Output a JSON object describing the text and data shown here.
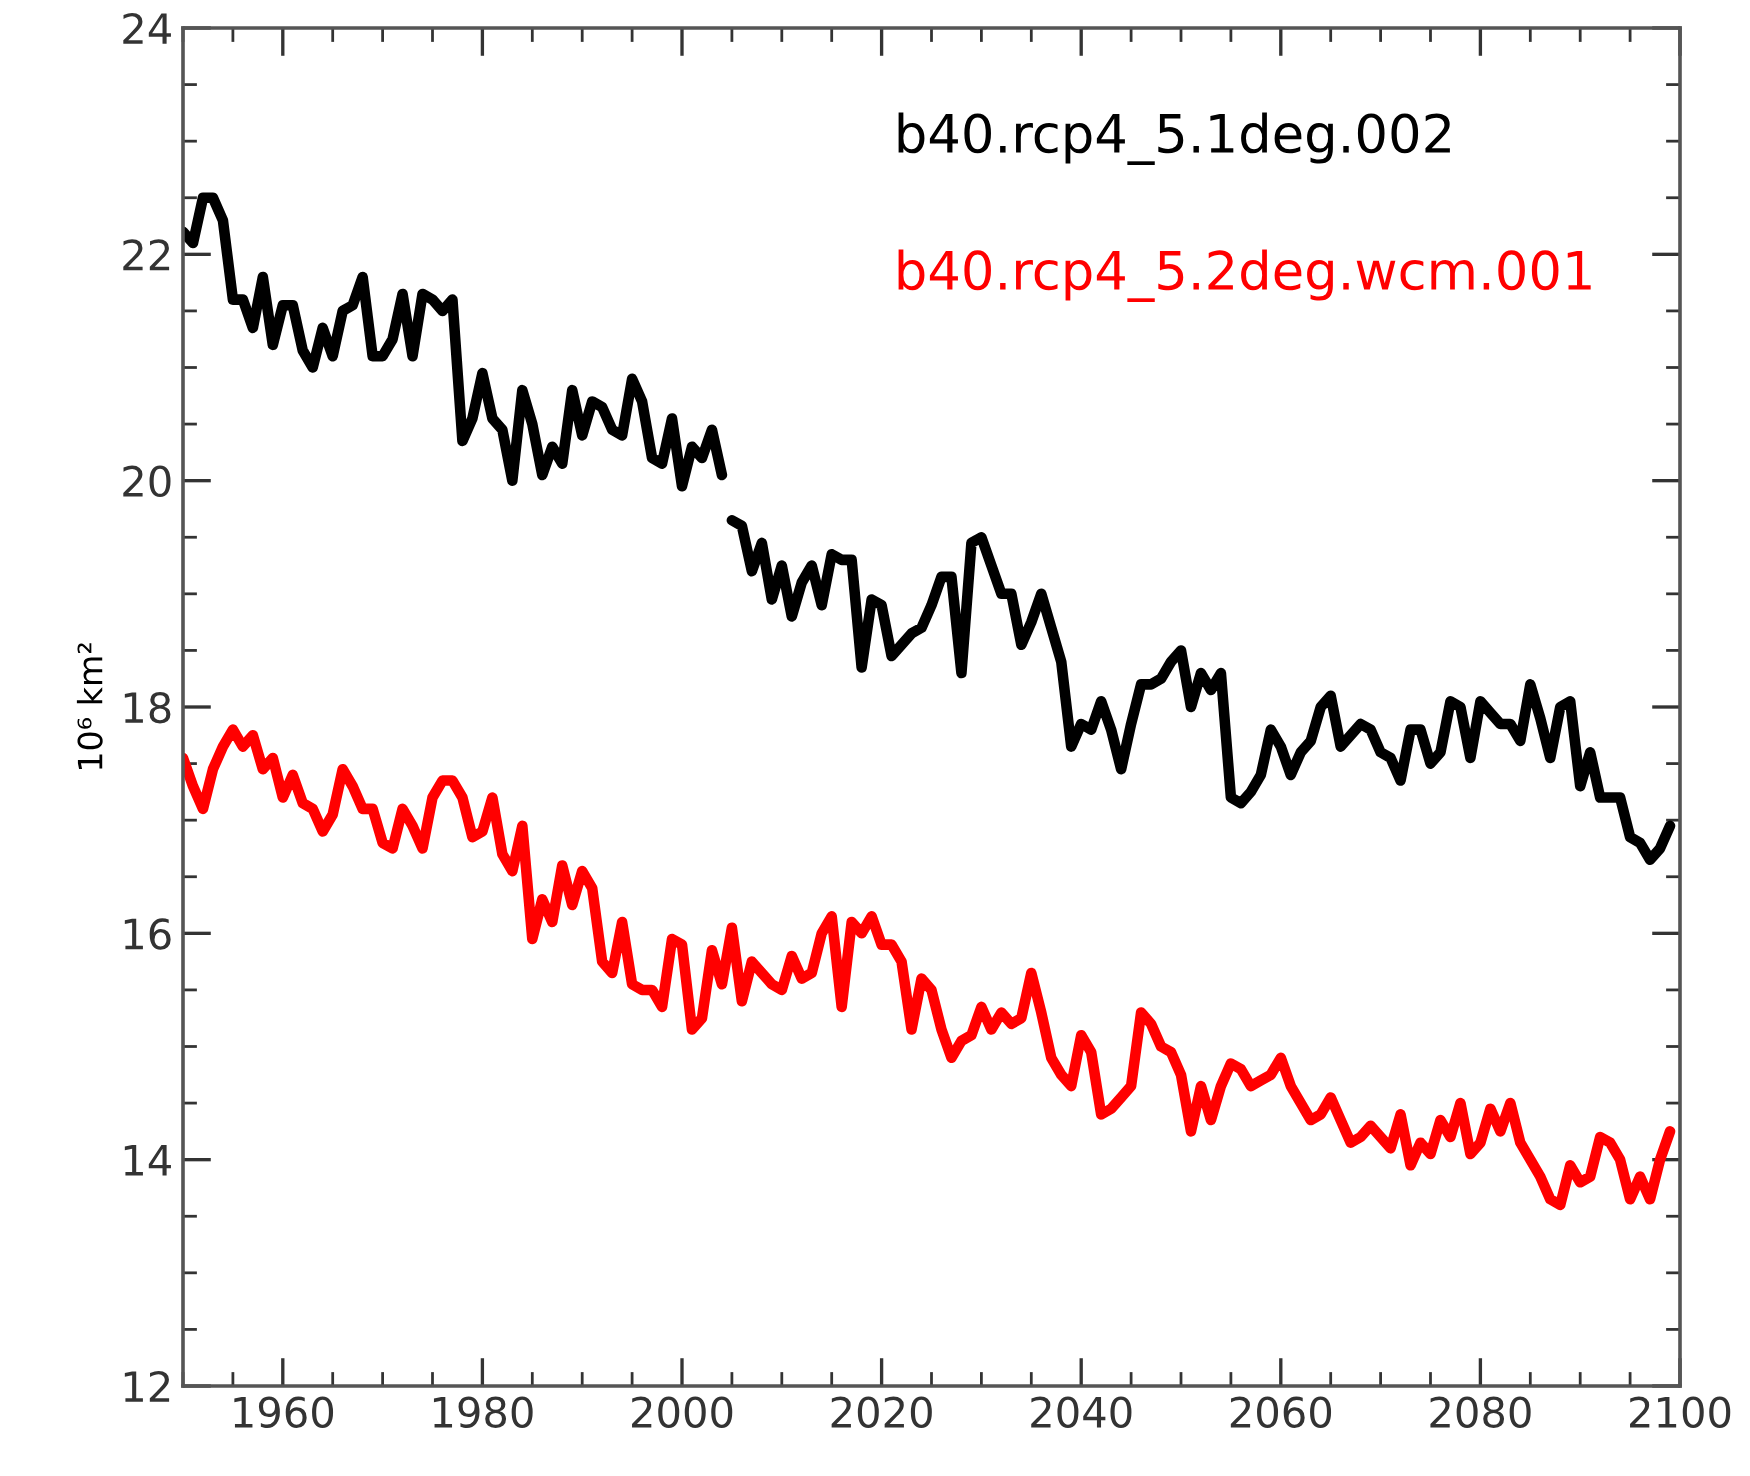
{
  "chart_data": {
    "type": "line",
    "ylabel": "10⁶ km²",
    "xlim": [
      1950,
      2100
    ],
    "xticks": [
      1960,
      1980,
      2000,
      2020,
      2040,
      2060,
      2080,
      2100
    ],
    "ylim": [
      12,
      24
    ],
    "yticks": [
      12,
      14,
      16,
      18,
      20,
      22,
      24
    ],
    "grid": false,
    "legend": "top right",
    "marker": "none",
    "line_style": "solid",
    "series": [
      {
        "name": "b40.rcp4_5.1deg.002",
        "color": "#000000",
        "x": [
          1950,
          1951,
          1952,
          1953,
          1954,
          1955,
          1956,
          1957,
          1958,
          1959,
          1960,
          1961,
          1962,
          1963,
          1964,
          1965,
          1966,
          1967,
          1968,
          1969,
          1970,
          1971,
          1972,
          1973,
          1974,
          1975,
          1976,
          1977,
          1978,
          1979,
          1980,
          1981,
          1982,
          1983,
          1984,
          1985,
          1986,
          1987,
          1988,
          1989,
          1990,
          1991,
          1992,
          1993,
          1994,
          1995,
          1996,
          1997,
          1998,
          1999,
          2000,
          2001,
          2002,
          2003,
          2004,
          2004.5,
          2005,
          2006,
          2007,
          2008,
          2009,
          2010,
          2011,
          2012,
          2013,
          2014,
          2015,
          2016,
          2017,
          2018,
          2019,
          2020,
          2021,
          2022,
          2023,
          2024,
          2025,
          2026,
          2027,
          2028,
          2029,
          2030,
          2031,
          2032,
          2033,
          2034,
          2035,
          2036,
          2037,
          2038,
          2039,
          2040,
          2041,
          2042,
          2043,
          2044,
          2045,
          2046,
          2047,
          2048,
          2049,
          2050,
          2051,
          2052,
          2053,
          2054,
          2055,
          2056,
          2057,
          2058,
          2059,
          2060,
          2061,
          2062,
          2063,
          2064,
          2065,
          2066,
          2067,
          2068,
          2069,
          2070,
          2071,
          2072,
          2073,
          2074,
          2075,
          2076,
          2077,
          2078,
          2079,
          2080,
          2081,
          2082,
          2083,
          2084,
          2085,
          2086,
          2087,
          2088,
          2089,
          2090,
          2091,
          2092,
          2093,
          2094,
          2095,
          2096,
          2097,
          2098,
          2099
        ],
        "values": [
          22.2,
          22.1,
          22.5,
          22.5,
          22.3,
          21.6,
          21.6,
          21.35,
          21.8,
          21.2,
          21.55,
          21.55,
          21.15,
          21.0,
          21.35,
          21.1,
          21.5,
          21.55,
          21.8,
          21.1,
          21.1,
          21.25,
          21.65,
          21.1,
          21.65,
          21.6,
          21.5,
          21.6,
          20.35,
          20.55,
          20.95,
          20.55,
          20.45,
          20.0,
          20.8,
          20.5,
          20.05,
          20.3,
          20.15,
          20.8,
          20.4,
          20.7,
          20.65,
          20.45,
          20.4,
          20.9,
          20.7,
          20.2,
          20.15,
          20.55,
          19.95,
          20.3,
          20.2,
          20.45,
          20.05,
          null,
          19.65,
          19.6,
          19.2,
          19.45,
          18.95,
          19.25,
          18.8,
          19.1,
          19.25,
          18.9,
          19.35,
          19.3,
          19.3,
          18.35,
          18.95,
          18.9,
          18.45,
          18.55,
          18.65,
          18.7,
          18.9,
          19.15,
          19.15,
          18.3,
          19.45,
          19.5,
          19.25,
          19.0,
          19.0,
          18.55,
          18.75,
          19.0,
          18.7,
          18.4,
          17.65,
          17.85,
          17.8,
          18.05,
          17.8,
          17.45,
          17.85,
          18.2,
          18.2,
          18.25,
          18.4,
          18.5,
          18.0,
          18.3,
          18.15,
          18.3,
          17.2,
          17.15,
          17.25,
          17.4,
          17.8,
          17.65,
          17.4,
          17.6,
          17.7,
          18.0,
          18.1,
          17.65,
          17.75,
          17.85,
          17.8,
          17.6,
          17.55,
          17.35,
          17.8,
          17.8,
          17.5,
          17.6,
          18.05,
          18.0,
          17.55,
          18.05,
          17.95,
          17.85,
          17.85,
          17.7,
          18.2,
          17.9,
          17.55,
          18.0,
          18.05,
          17.3,
          17.6,
          17.2,
          17.2,
          17.2,
          16.85,
          16.8,
          16.65,
          16.75,
          16.95
        ]
      },
      {
        "name": "b40.rcp4_5.2deg.wcm.001",
        "color": "#ff0000",
        "x": [
          1950,
          1951,
          1952,
          1953,
          1954,
          1955,
          1956,
          1957,
          1958,
          1959,
          1960,
          1961,
          1962,
          1963,
          1964,
          1965,
          1966,
          1967,
          1968,
          1969,
          1970,
          1971,
          1972,
          1973,
          1974,
          1975,
          1976,
          1977,
          1978,
          1979,
          1980,
          1981,
          1982,
          1983,
          1984,
          1985,
          1986,
          1987,
          1988,
          1989,
          1990,
          1991,
          1992,
          1993,
          1994,
          1995,
          1996,
          1997,
          1998,
          1999,
          2000,
          2001,
          2002,
          2003,
          2004,
          2005,
          2006,
          2007,
          2008,
          2009,
          2010,
          2011,
          2012,
          2013,
          2014,
          2015,
          2016,
          2017,
          2018,
          2019,
          2020,
          2021,
          2022,
          2023,
          2024,
          2025,
          2026,
          2027,
          2028,
          2029,
          2030,
          2031,
          2032,
          2033,
          2034,
          2035,
          2036,
          2037,
          2038,
          2039,
          2040,
          2041,
          2042,
          2043,
          2044,
          2045,
          2046,
          2047,
          2048,
          2049,
          2050,
          2051,
          2052,
          2053,
          2054,
          2055,
          2056,
          2057,
          2058,
          2059,
          2060,
          2061,
          2062,
          2063,
          2064,
          2065,
          2066,
          2067,
          2068,
          2069,
          2070,
          2071,
          2072,
          2073,
          2074,
          2075,
          2076,
          2077,
          2078,
          2079,
          2080,
          2081,
          2082,
          2083,
          2084,
          2085,
          2086,
          2087,
          2088,
          2089,
          2090,
          2091,
          2092,
          2093,
          2094,
          2095,
          2096,
          2097,
          2098,
          2099
        ],
        "values": [
          17.55,
          17.3,
          17.1,
          17.45,
          17.65,
          17.8,
          17.65,
          17.75,
          17.45,
          17.55,
          17.2,
          17.4,
          17.15,
          17.1,
          16.9,
          17.05,
          17.45,
          17.3,
          17.1,
          17.1,
          16.8,
          16.75,
          17.1,
          16.95,
          16.75,
          17.2,
          17.35,
          17.35,
          17.2,
          16.85,
          16.9,
          17.2,
          16.7,
          16.55,
          16.95,
          15.95,
          16.3,
          16.1,
          16.6,
          16.25,
          16.55,
          16.4,
          15.75,
          15.65,
          16.1,
          15.55,
          15.5,
          15.5,
          15.35,
          15.95,
          15.9,
          15.15,
          15.25,
          15.85,
          15.55,
          16.05,
          15.4,
          15.75,
          15.65,
          15.55,
          15.5,
          15.8,
          15.6,
          15.65,
          16.0,
          16.15,
          15.35,
          16.1,
          16.0,
          16.15,
          15.9,
          15.9,
          15.75,
          15.15,
          15.6,
          15.5,
          15.15,
          14.9,
          15.05,
          15.1,
          15.35,
          15.15,
          15.3,
          15.2,
          15.25,
          15.65,
          15.3,
          14.9,
          14.75,
          14.65,
          15.1,
          14.95,
          14.4,
          14.45,
          14.55,
          14.65,
          15.3,
          15.2,
          15.0,
          14.95,
          14.75,
          14.25,
          14.65,
          14.35,
          14.65,
          14.85,
          14.8,
          14.65,
          14.7,
          14.75,
          14.9,
          14.65,
          14.5,
          14.35,
          14.4,
          14.55,
          14.35,
          14.15,
          14.2,
          14.3,
          14.2,
          14.1,
          14.4,
          13.95,
          14.15,
          14.05,
          14.35,
          14.2,
          14.5,
          14.05,
          14.15,
          14.45,
          14.25,
          14.5,
          14.15,
          14.0,
          13.85,
          13.65,
          13.6,
          13.95,
          13.8,
          13.85,
          14.2,
          14.15,
          14.0,
          13.65,
          13.85,
          13.65,
          14.0,
          14.25
        ]
      }
    ]
  }
}
